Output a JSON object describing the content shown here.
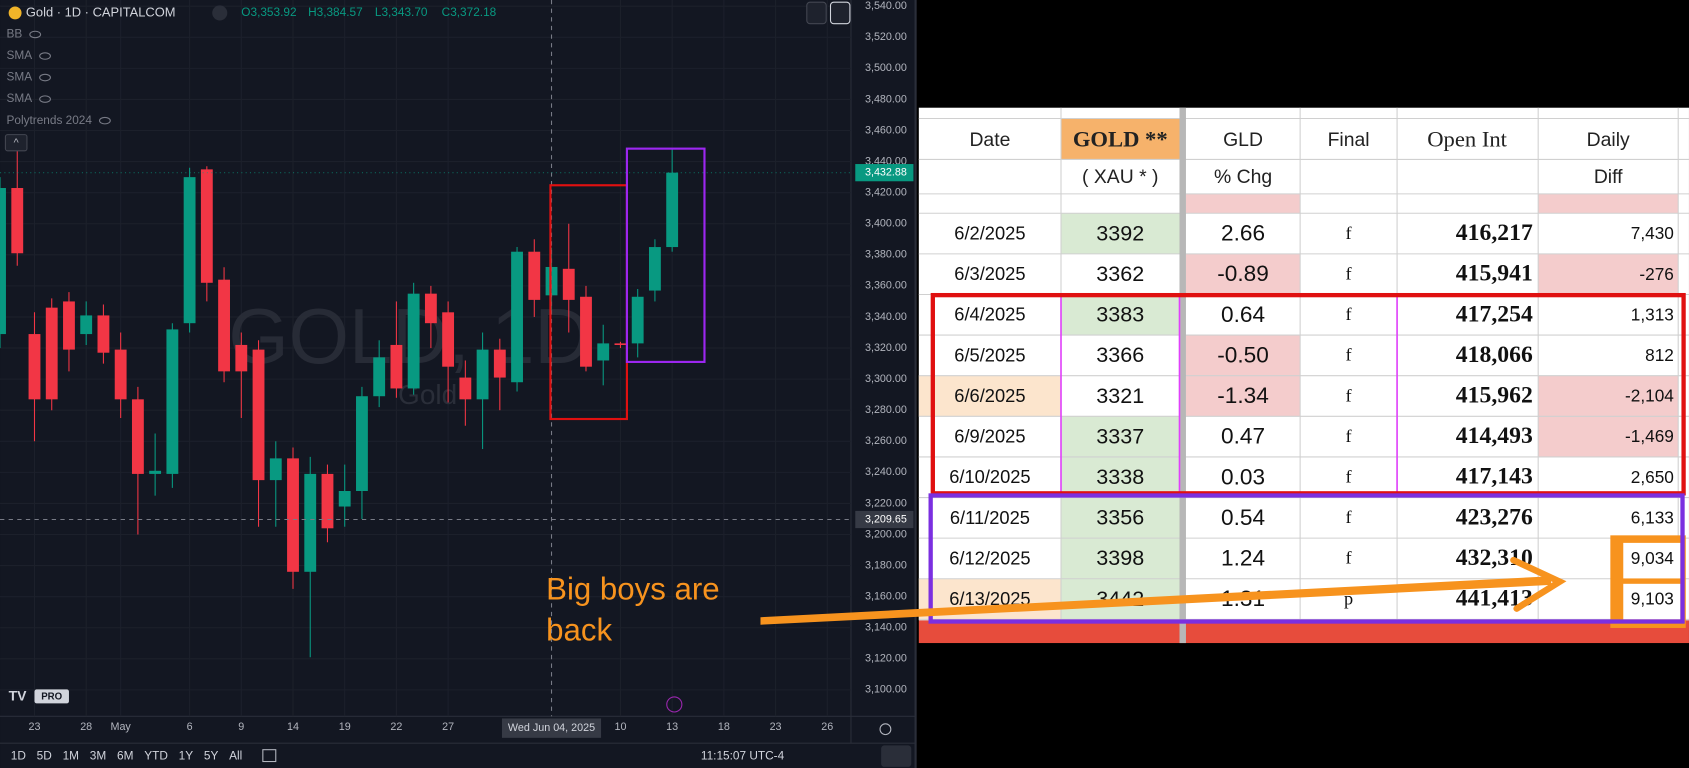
{
  "chart_data": {
    "type": "candlestick",
    "title": "Gold · 1D · CAPITALCOM",
    "ohlc": [
      "O3,353.92",
      "H3,384.57",
      "L3,343.70",
      "C3,372.18"
    ],
    "indicators": [
      "BB",
      "SMA",
      "SMA",
      "SMA",
      "Polytrends 2024"
    ],
    "watermark": "GOLD, 1D",
    "watermark_sub": "Gold",
    "up_color": "#089981",
    "down_color": "#f23645",
    "grid": true,
    "x": [
      0,
      1,
      2,
      3,
      4,
      5,
      6,
      7,
      8,
      9,
      10,
      11,
      12,
      13,
      14,
      15,
      16,
      17,
      18,
      19,
      20,
      21,
      22,
      23,
      24,
      25,
      26,
      27,
      28,
      29,
      30,
      31,
      32,
      33,
      34,
      35,
      36,
      37,
      38,
      39
    ],
    "open": [
      3329,
      3423,
      3329,
      3346,
      3350,
      3329,
      3341,
      3319,
      3287,
      3239,
      3239,
      3336,
      3435,
      3364,
      3322,
      3319,
      3235,
      3249,
      3176,
      3239,
      3218,
      3228,
      3289,
      3322,
      3294,
      3355,
      3343,
      3301,
      3287,
      3319,
      3298,
      3382,
      3353.92,
      3371,
      3353,
      3312,
      3323,
      3323,
      3357,
      3385
    ],
    "high": [
      3430,
      3447,
      3343,
      3352,
      3356,
      3350,
      3348,
      3330,
      3295,
      3265,
      3336,
      3436,
      3437,
      3372,
      3330,
      3325,
      3260,
      3256,
      3250,
      3245,
      3245,
      3295,
      3325,
      3350,
      3362,
      3360,
      3350,
      3312,
      3330,
      3326,
      3385,
      3390,
      3384.57,
      3400,
      3360,
      3335,
      3324,
      3358,
      3390,
      3448
    ],
    "low": [
      3320,
      3373,
      3260,
      3280,
      3305,
      3322,
      3310,
      3275,
      3200,
      3225,
      3230,
      3330,
      3350,
      3298,
      3275,
      3205,
      3205,
      3165,
      3121,
      3195,
      3205,
      3210,
      3282,
      3288,
      3290,
      3320,
      3285,
      3270,
      3255,
      3280,
      3292,
      3340,
      3343.7,
      3330,
      3305,
      3296,
      3320,
      3314,
      3350,
      3382
    ],
    "close": [
      3423,
      3381,
      3287,
      3287,
      3319,
      3341,
      3317,
      3287,
      3239,
      3241,
      3332,
      3430,
      3362,
      3305,
      3305,
      3235,
      3249,
      3176,
      3239,
      3204,
      3228,
      3289,
      3314,
      3294,
      3355,
      3336,
      3308,
      3287,
      3319,
      3301,
      3382,
      3351,
      3372.18,
      3351,
      3308,
      3323,
      3322,
      3353,
      3385,
      3432.88
    ],
    "xlim": [
      0,
      49.375
    ],
    "xticks": [
      {
        "value": 2,
        "label": "23"
      },
      {
        "value": 5,
        "label": "28"
      },
      {
        "value": 7,
        "label": "May"
      },
      {
        "value": 11,
        "label": "6"
      },
      {
        "value": 14,
        "label": "9"
      },
      {
        "value": 17,
        "label": "14"
      },
      {
        "value": 20,
        "label": "19"
      },
      {
        "value": 23,
        "label": "22"
      },
      {
        "value": 26,
        "label": "27"
      },
      {
        "value": 36,
        "label": "10"
      },
      {
        "value": 39,
        "label": "13"
      },
      {
        "value": 42,
        "label": "18"
      },
      {
        "value": 45,
        "label": "23"
      },
      {
        "value": 48,
        "label": "26"
      }
    ],
    "ylim": [
      3083,
      3544
    ],
    "yticks": [
      {
        "value": 3100,
        "label": "3,100.00"
      },
      {
        "value": 3120,
        "label": "3,120.00"
      },
      {
        "value": 3140,
        "label": "3,140.00"
      },
      {
        "value": 3160,
        "label": "3,160.00"
      },
      {
        "value": 3180,
        "label": "3,180.00"
      },
      {
        "value": 3200,
        "label": "3,200.00"
      },
      {
        "value": 3220,
        "label": "3,220.00"
      },
      {
        "value": 3240,
        "label": "3,240.00"
      },
      {
        "value": 3260,
        "label": "3,260.00"
      },
      {
        "value": 3280,
        "label": "3,280.00"
      },
      {
        "value": 3300,
        "label": "3,300.00"
      },
      {
        "value": 3320,
        "label": "3,320.00"
      },
      {
        "value": 3340,
        "label": "3,340.00"
      },
      {
        "value": 3360,
        "label": "3,360.00"
      },
      {
        "value": 3380,
        "label": "3,380.00"
      },
      {
        "value": 3400,
        "label": "3,400.00"
      },
      {
        "value": 3420,
        "label": "3,420.00"
      },
      {
        "value": 3440,
        "label": "3,440.00"
      },
      {
        "value": 3460,
        "label": "3,460.00"
      },
      {
        "value": 3480,
        "label": "3,480.00"
      },
      {
        "value": 3500,
        "label": "3,500.00"
      },
      {
        "value": 3520,
        "label": "3,520.00"
      },
      {
        "value": 3540,
        "label": "3,540.00"
      }
    ],
    "last_price": {
      "value": 3432.88,
      "label": "3,432.88"
    },
    "crosshair": {
      "x": 32,
      "x_label": "Wed Jun 04, 2025",
      "y": 3209.65,
      "y_label": "3,209.65"
    }
  },
  "toolbar": {
    "ranges": [
      "1D",
      "5D",
      "1M",
      "3M",
      "6M",
      "YTD",
      "1Y",
      "5Y",
      "All"
    ],
    "clock": "11:15:07 UTC-4",
    "logo": "PRO"
  },
  "table": {
    "header": [
      [
        "Date"
      ],
      [
        "GOLD **",
        "( XAU * )"
      ],
      [
        "GLD",
        "% Chg"
      ],
      [
        "Final"
      ],
      [
        "Open Int"
      ],
      [
        "Daily",
        "Diff"
      ]
    ],
    "rows": [
      [
        "6/2/2025",
        "3392",
        "2.66",
        "f",
        "416,217",
        "7,430"
      ],
      [
        "6/3/2025",
        "3362",
        "-0.89",
        "f",
        "415,941",
        "-276"
      ],
      [
        "6/4/2025",
        "3383",
        "0.64",
        "f",
        "417,254",
        "1,313"
      ],
      [
        "6/5/2025",
        "3366",
        "-0.50",
        "f",
        "418,066",
        "812"
      ],
      [
        "6/6/2025",
        "3321",
        "-1.34",
        "f",
        "415,962",
        "-2,104"
      ],
      [
        "6/9/2025",
        "3337",
        "0.47",
        "f",
        "414,493",
        "-1,469"
      ],
      [
        "6/10/2025",
        "3338",
        "0.03",
        "f",
        "417,143",
        "2,650"
      ],
      [
        "6/11/2025",
        "3356",
        "0.54",
        "f",
        "423,276",
        "6,133"
      ],
      [
        "6/12/2025",
        "3398",
        "1.24",
        "f",
        "432,310",
        "9,034"
      ],
      [
        "6/13/2025",
        "3442",
        "1.31",
        "p",
        "441,413",
        "9,103"
      ]
    ]
  },
  "annotation": {
    "lines": [
      "Big boys are",
      "back"
    ]
  }
}
